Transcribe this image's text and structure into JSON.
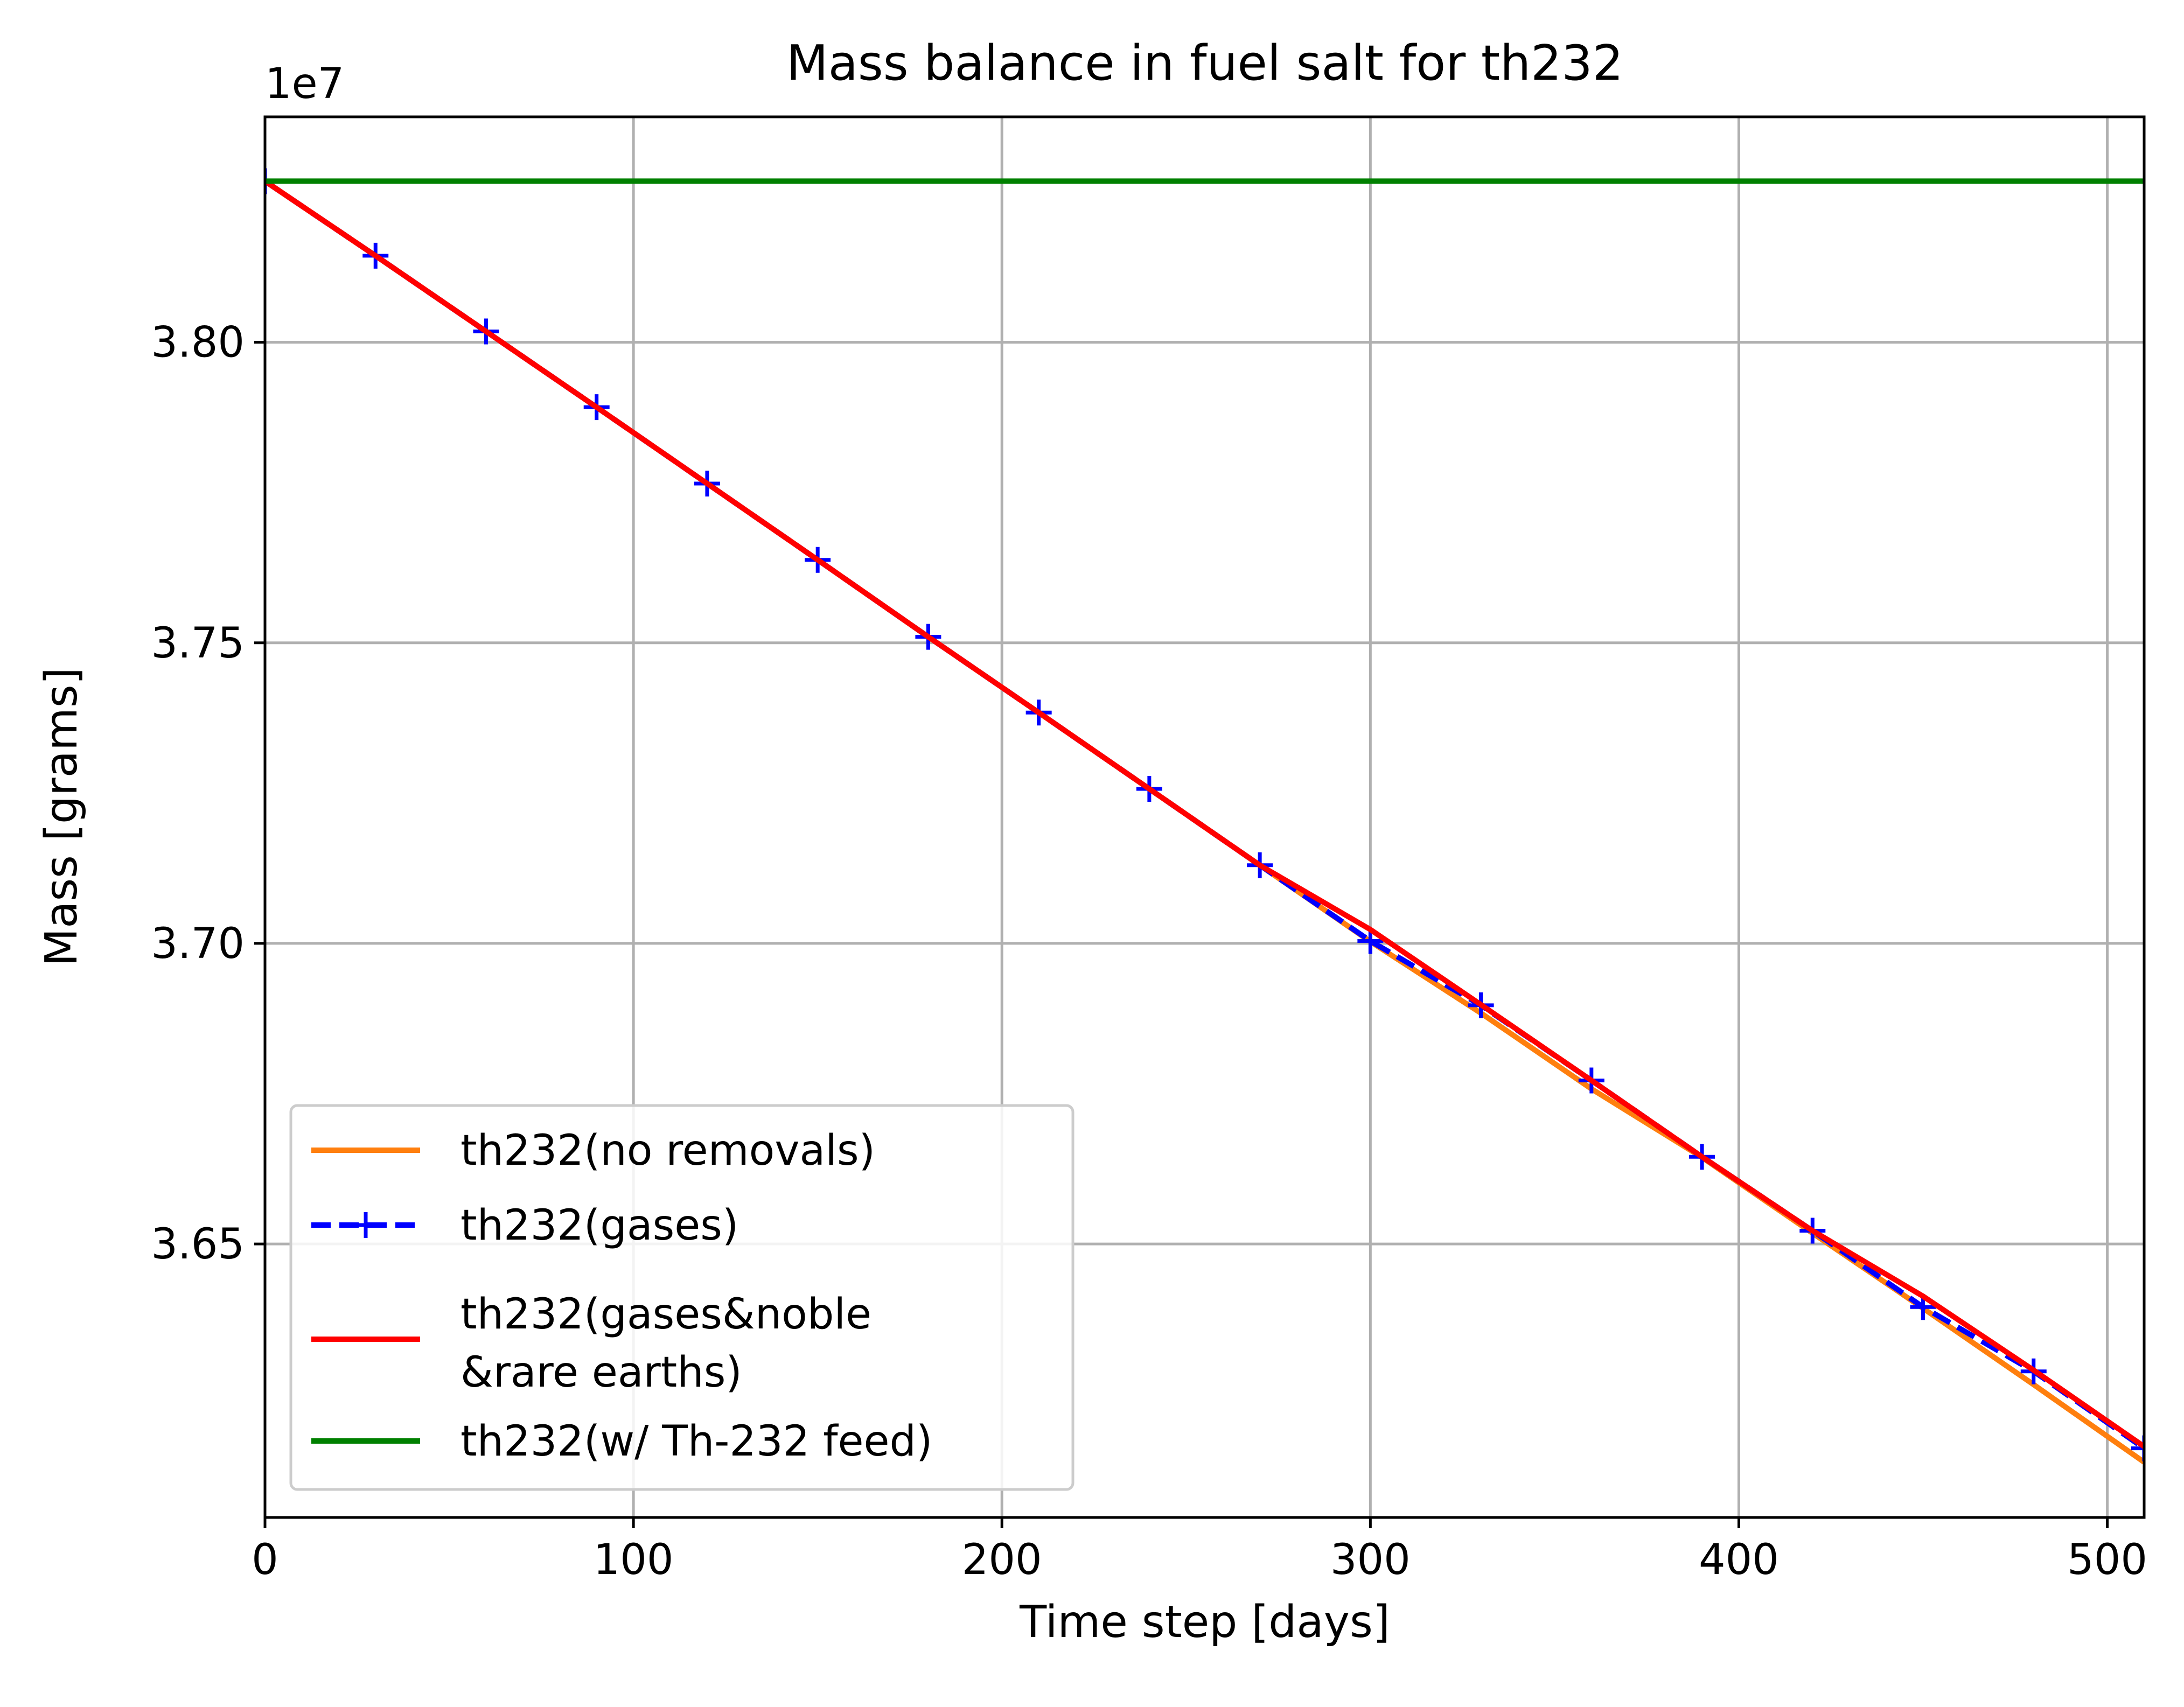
{
  "chart_data": {
    "type": "line",
    "title": "Mass balance in fuel salt for th232",
    "xlabel": "Time step [days]",
    "ylabel": "Mass [grams]",
    "y_offset_label": "1e7",
    "xlim": [
      0,
      510
    ],
    "ylim": [
      3.6045,
      3.8375
    ],
    "x_ticks": [
      0,
      100,
      200,
      300,
      400,
      500
    ],
    "x_tick_labels": [
      "0",
      "100",
      "200",
      "300",
      "400",
      "500"
    ],
    "y_ticks": [
      3.65,
      3.7,
      3.75,
      3.8
    ],
    "y_tick_labels": [
      "3.65",
      "3.70",
      "3.75",
      "3.80"
    ],
    "grid": true,
    "legend_position": "lower left",
    "series": [
      {
        "name": "th232(no removals)",
        "legend_lines": [
          "th232(no removals)"
        ],
        "color": "#ff7f0e",
        "style": "solid",
        "marker": "none",
        "x": [
          0,
          30,
          60,
          90,
          120,
          150,
          180,
          210,
          240,
          270,
          300,
          330,
          360,
          390,
          420,
          450,
          480,
          510
        ],
        "y": [
          3.8268,
          3.8144,
          3.8018,
          3.7892,
          3.7765,
          3.7638,
          3.751,
          3.7384,
          3.7257,
          3.713,
          3.7003,
          3.6884,
          3.6758,
          3.6644,
          3.6518,
          3.6393,
          3.6266,
          3.6137
        ]
      },
      {
        "name": "th232(gases)",
        "legend_lines": [
          "th232(gases)"
        ],
        "color": "#0000ff",
        "style": "dashed",
        "marker": "plus",
        "x": [
          0,
          30,
          60,
          90,
          120,
          150,
          180,
          210,
          240,
          270,
          300,
          330,
          360,
          390,
          420,
          450,
          480,
          510
        ],
        "y": [
          3.8268,
          3.8144,
          3.8018,
          3.7892,
          3.7765,
          3.7638,
          3.751,
          3.7384,
          3.7257,
          3.713,
          3.7004,
          3.6897,
          3.6772,
          3.6645,
          3.6522,
          3.6395,
          3.6288,
          3.616
        ]
      },
      {
        "name": "th232(gases&noble &rare earths)",
        "legend_lines": [
          "th232(gases&noble",
          "&rare earths)"
        ],
        "color": "#ff0000",
        "style": "solid",
        "marker": "none",
        "x": [
          0,
          30,
          60,
          90,
          120,
          150,
          180,
          210,
          240,
          270,
          300,
          330,
          360,
          390,
          420,
          450,
          480,
          510
        ],
        "y": [
          3.8268,
          3.8144,
          3.8018,
          3.7892,
          3.7765,
          3.7638,
          3.751,
          3.7384,
          3.7257,
          3.713,
          3.7023,
          3.6898,
          3.6772,
          3.6645,
          3.6522,
          3.6413,
          3.629,
          3.6163
        ]
      },
      {
        "name": "th232(w/ Th-232 feed)",
        "legend_lines": [
          "th232(w/ Th-232 feed)"
        ],
        "color": "#008000",
        "style": "solid",
        "marker": "none",
        "x": [
          0,
          510
        ],
        "y": [
          3.8268,
          3.8268
        ]
      }
    ]
  }
}
